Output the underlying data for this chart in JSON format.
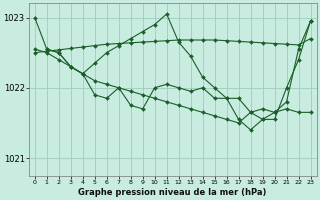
{
  "bg_color": "#c8ece0",
  "grid_color": "#a0ccbc",
  "line_color": "#1a5e28",
  "marker_color": "#1a5e28",
  "xlabel": "Graphe pression niveau de la mer (hPa)",
  "ylim": [
    1020.75,
    1023.2
  ],
  "yticks": [
    1021,
    1022,
    1023
  ],
  "xlim": [
    -0.5,
    23.5
  ],
  "xticks": [
    0,
    1,
    2,
    3,
    4,
    5,
    6,
    7,
    8,
    9,
    10,
    11,
    12,
    13,
    14,
    15,
    16,
    17,
    18,
    19,
    20,
    21,
    22,
    23
  ],
  "series": [
    {
      "x": [
        0,
        1,
        2,
        3,
        4,
        5,
        6,
        7,
        8,
        9,
        10,
        11,
        12,
        13,
        14,
        15,
        16,
        17,
        18,
        19,
        20,
        21,
        22,
        23
      ],
      "y": [
        1023.0,
        1022.55,
        1022.5,
        1022.3,
        1022.2,
        1021.9,
        1021.85,
        1022.0,
        1021.75,
        1021.7,
        1022.0,
        1022.05,
        1022.0,
        1021.95,
        1022.0,
        1021.85,
        1021.85,
        1021.55,
        1021.4,
        1021.55,
        1021.65,
        1021.8,
        1022.55,
        1022.95
      ]
    },
    {
      "x": [
        0,
        1,
        2,
        3,
        4,
        5,
        6,
        7,
        8,
        9,
        10,
        11,
        12,
        13,
        14,
        15,
        16,
        17,
        18,
        19,
        20,
        21,
        22,
        23
      ],
      "y": [
        1022.5,
        1022.52,
        1022.54,
        1022.56,
        1022.58,
        1022.6,
        1022.62,
        1022.63,
        1022.64,
        1022.65,
        1022.66,
        1022.67,
        1022.68,
        1022.68,
        1022.68,
        1022.68,
        1022.67,
        1022.66,
        1022.65,
        1022.64,
        1022.63,
        1022.62,
        1022.61,
        1022.7
      ]
    },
    {
      "x": [
        1,
        2,
        3,
        4,
        5,
        6,
        7,
        8,
        9,
        10,
        11,
        12,
        13,
        14,
        15,
        16,
        17,
        18,
        19,
        20,
        21,
        22,
        23
      ],
      "y": [
        1022.55,
        1022.5,
        1022.3,
        1022.2,
        1022.35,
        1022.5,
        1022.6,
        1022.7,
        1022.8,
        1022.9,
        1023.05,
        1022.65,
        1022.45,
        1022.15,
        1022.0,
        1021.85,
        1021.85,
        1021.65,
        1021.55,
        1021.55,
        1022.0,
        1022.4,
        1022.95
      ]
    },
    {
      "x": [
        0,
        1,
        2,
        3,
        4,
        5,
        6,
        7,
        8,
        9,
        10,
        11,
        12,
        13,
        14,
        15,
        16,
        17,
        18,
        19,
        20,
        21,
        22,
        23
      ],
      "y": [
        1022.55,
        1022.5,
        1022.4,
        1022.3,
        1022.2,
        1022.1,
        1022.05,
        1022.0,
        1021.95,
        1021.9,
        1021.85,
        1021.8,
        1021.75,
        1021.7,
        1021.65,
        1021.6,
        1021.55,
        1021.5,
        1021.65,
        1021.7,
        1021.65,
        1021.7,
        1021.65,
        1021.65
      ]
    }
  ]
}
